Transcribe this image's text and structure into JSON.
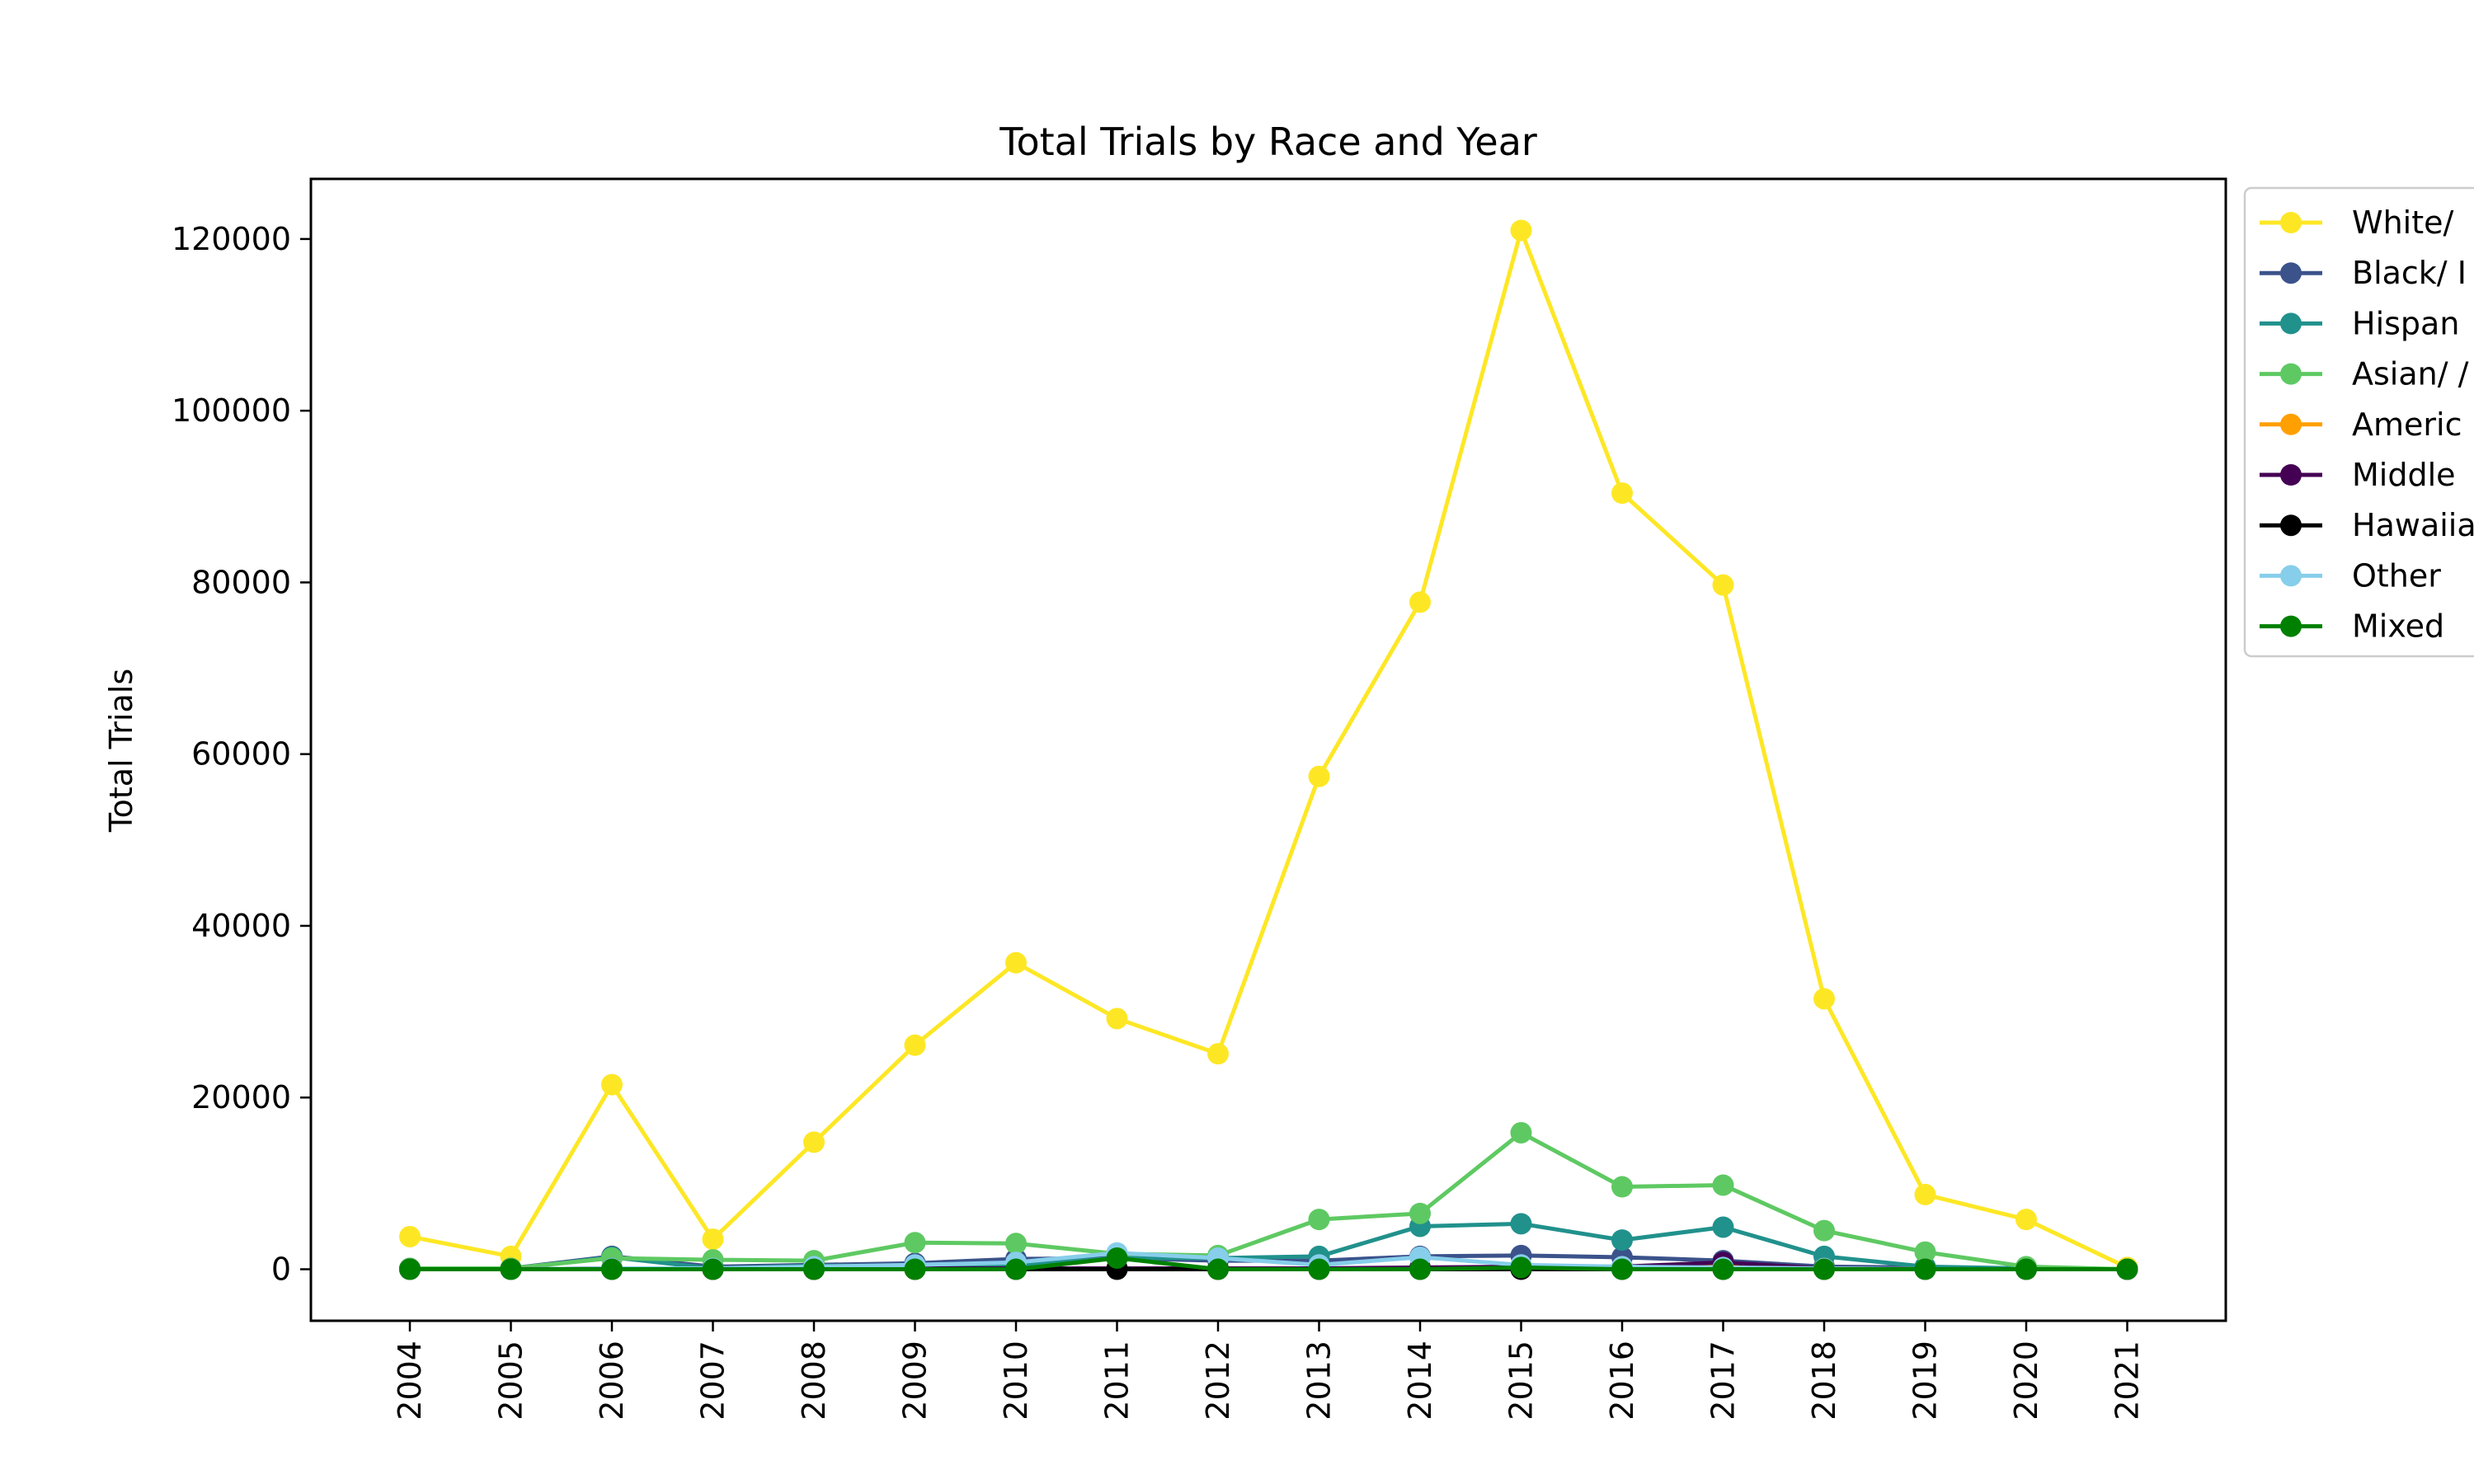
{
  "chart_data": {
    "type": "line",
    "title": "Total Trials by Race and Year",
    "xlabel": "",
    "ylabel": "Total Trials",
    "x": [
      "2004",
      "2005",
      "2006",
      "2007",
      "2008",
      "2009",
      "2010",
      "2011",
      "2012",
      "2013",
      "2014",
      "2015",
      "2016",
      "2017",
      "2018",
      "2019",
      "2020",
      "2021"
    ],
    "yticks": [
      0,
      20000,
      40000,
      60000,
      80000,
      100000,
      120000
    ],
    "ylim": [
      -6000,
      127000
    ],
    "grid": false,
    "legend_position": "outside-right",
    "series": [
      {
        "name": "White/",
        "color": "#fde725",
        "values": [
          3800,
          1500,
          21500,
          3500,
          14800,
          26100,
          35700,
          29200,
          25100,
          57400,
          77700,
          121000,
          90400,
          79700,
          31500,
          8700,
          5800,
          200
        ]
      },
      {
        "name": "Black/ I",
        "color": "#3b528b",
        "values": [
          100,
          100,
          1500,
          300,
          500,
          700,
          1200,
          1300,
          1000,
          1000,
          1500,
          1600,
          1400,
          1000,
          300,
          200,
          100,
          0
        ]
      },
      {
        "name": "Hispan",
        "color": "#21918c",
        "values": [
          50,
          50,
          1400,
          100,
          400,
          400,
          500,
          1300,
          1300,
          1500,
          5000,
          5300,
          3400,
          4900,
          1500,
          300,
          100,
          0
        ]
      },
      {
        "name": "Asian/ /",
        "color": "#5ec962",
        "values": [
          100,
          100,
          1300,
          1100,
          1000,
          3100,
          3000,
          1800,
          1600,
          5800,
          6500,
          15900,
          9600,
          9800,
          4500,
          2000,
          300,
          0
        ]
      },
      {
        "name": "Americ",
        "color": "#ff9f00",
        "values": [
          0,
          0,
          100,
          0,
          0,
          0,
          100,
          100,
          0,
          100,
          100,
          200,
          300,
          400,
          100,
          0,
          0,
          0
        ]
      },
      {
        "name": "Middle",
        "color": "#440154",
        "values": [
          0,
          0,
          100,
          0,
          0,
          100,
          100,
          100,
          100,
          100,
          200,
          300,
          300,
          800,
          100,
          0,
          0,
          0
        ]
      },
      {
        "name": "Hawaiia",
        "color": "#000000",
        "values": [
          0,
          0,
          0,
          0,
          0,
          0,
          0,
          0,
          0,
          0,
          0,
          0,
          0,
          0,
          0,
          0,
          0,
          0
        ]
      },
      {
        "name": "Other",
        "color": "#87ceeb",
        "values": [
          0,
          0,
          100,
          100,
          300,
          500,
          800,
          1900,
          1300,
          500,
          1400,
          500,
          300,
          200,
          100,
          0,
          0,
          0
        ]
      },
      {
        "name": "Mixed",
        "color": "#008000",
        "values": [
          0,
          0,
          0,
          0,
          0,
          0,
          0,
          1300,
          0,
          0,
          0,
          200,
          0,
          0,
          0,
          0,
          0,
          0
        ]
      }
    ]
  }
}
